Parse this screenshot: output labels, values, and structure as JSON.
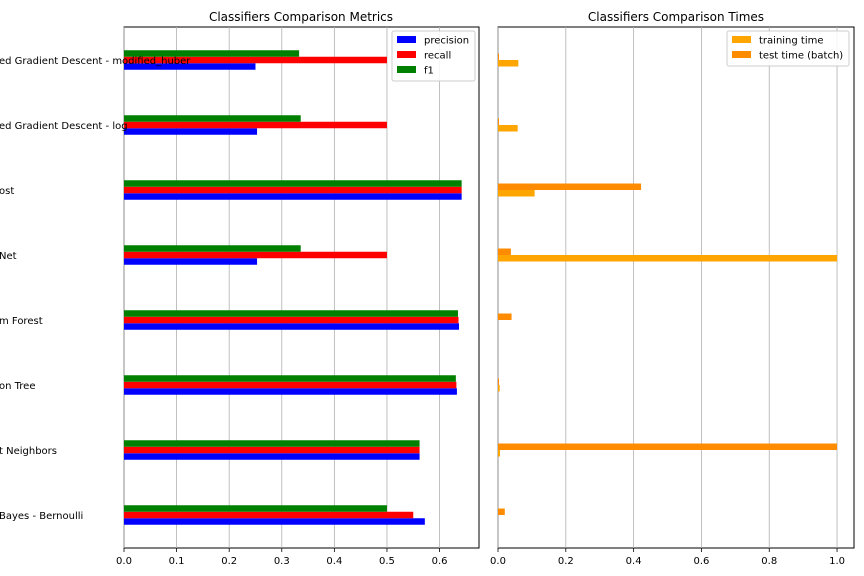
{
  "chart_data": [
    {
      "type": "bar",
      "orientation": "horizontal",
      "title": "Classifiers Comparison Metrics",
      "categories": [
        "ed Gradient Descent - modified_huber",
        "ed Gradient Descent - log",
        "ost",
        "Net",
        "m Forest",
        "on Tree",
        "t Neighbors",
        "Bayes - Bernoulli"
      ],
      "series": [
        {
          "name": "precision",
          "color": "#0000ff",
          "values": [
            0.25,
            0.253,
            0.642,
            0.253,
            0.637,
            0.633,
            0.562,
            0.572
          ]
        },
        {
          "name": "recall",
          "color": "#ff0000",
          "values": [
            0.5,
            0.5,
            0.642,
            0.5,
            0.636,
            0.632,
            0.562,
            0.55
          ]
        },
        {
          "name": "f1",
          "color": "#008000",
          "values": [
            0.333,
            0.336,
            0.642,
            0.336,
            0.635,
            0.631,
            0.562,
            0.5
          ]
        }
      ],
      "xlim": [
        0,
        0.675
      ],
      "xticks": [
        "0.0",
        "0.1",
        "0.2",
        "0.3",
        "0.4",
        "0.5",
        "0.6"
      ],
      "grid": true,
      "legend": "top-right"
    },
    {
      "type": "bar",
      "orientation": "horizontal",
      "title": "Classifiers Comparison Times",
      "categories": [
        "ed Gradient Descent - modified_huber",
        "ed Gradient Descent - log",
        "ost",
        "Net",
        "m Forest",
        "on Tree",
        "t Neighbors",
        "Bayes - Bernoulli"
      ],
      "series": [
        {
          "name": "training time",
          "color": "#ffa500",
          "values": [
            0.06,
            0.058,
            0.108,
            1.0,
            0.0,
            0.005,
            0.006,
            0.0
          ]
        },
        {
          "name": "test time (batch)",
          "color": "#ff8c00",
          "values": [
            0.003,
            0.003,
            0.422,
            0.038,
            0.04,
            0.003,
            1.0,
            0.02
          ]
        }
      ],
      "xlim": [
        0,
        1.05
      ],
      "xticks": [
        "0.0",
        "0.2",
        "0.4",
        "0.6",
        "0.8",
        "1.0"
      ],
      "grid": true,
      "legend": "top-right"
    }
  ]
}
